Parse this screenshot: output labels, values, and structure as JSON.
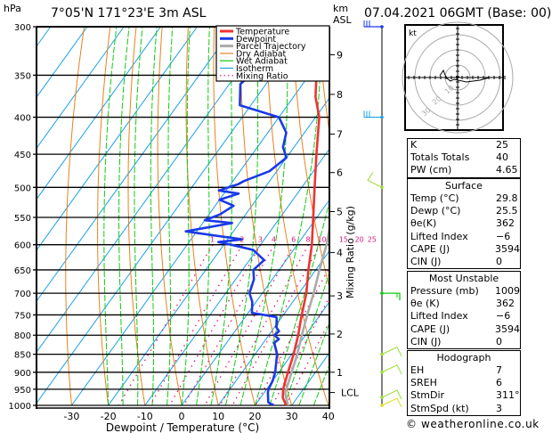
{
  "header": {
    "unit_label": "hPa",
    "location": "7°05'N  171°23'E  3m  ASL",
    "datetime": "07.04.2021  06GMT  (Base: 00)",
    "km_label_1": "km",
    "km_label_2": "ASL"
  },
  "legend": [
    {
      "label": "Temperature",
      "color": "#ee3333",
      "style": "solid-thick"
    },
    {
      "label": "Dewpoint",
      "color": "#1a3ae8",
      "style": "solid-thick"
    },
    {
      "label": "Parcel Trajectory",
      "color": "#aaaaaa",
      "style": "solid-thick"
    },
    {
      "label": "Dry Adiabat",
      "color": "#e8821e",
      "style": "solid"
    },
    {
      "label": "Wet Adiabat",
      "color": "#11cc11",
      "style": "solid"
    },
    {
      "label": "Isotherm",
      "color": "#1aa0e8",
      "style": "solid"
    },
    {
      "label": "Mixing Ratio",
      "color": "#e0157a",
      "style": "dotted"
    }
  ],
  "chart_data": {
    "type": "line",
    "title": "7°05'N 171°23'E 3m ASL",
    "xlabel": "Dewpoint / Temperature (°C)",
    "ylabel": "hPa",
    "right_axis_label": "Mixing Ratio (g/kg)",
    "xlim": [
      -40,
      40
    ],
    "ylim": [
      1000,
      300
    ],
    "x_ticks": [
      -30,
      -20,
      -10,
      0,
      10,
      20,
      30,
      40
    ],
    "pressure_levels": [
      300,
      350,
      400,
      450,
      500,
      550,
      600,
      650,
      700,
      750,
      800,
      850,
      900,
      950,
      1000
    ],
    "km_ticks": [
      {
        "label": "9",
        "p": 328
      },
      {
        "label": "8",
        "p": 372
      },
      {
        "label": "7",
        "p": 422
      },
      {
        "label": "6",
        "p": 477
      },
      {
        "label": "5",
        "p": 540
      },
      {
        "label": "4",
        "p": 615
      },
      {
        "label": "3",
        "p": 706
      },
      {
        "label": "2",
        "p": 797
      },
      {
        "label": "1",
        "p": 900
      },
      {
        "label": "LCL",
        "p": 960
      }
    ],
    "mixing_ratio_labels": [
      "1",
      "2",
      "3",
      "4",
      "6",
      "8",
      "10",
      "15",
      "20",
      "25"
    ],
    "mixing_ratio_values": [
      1,
      2,
      3,
      4,
      6,
      8,
      10,
      15,
      20,
      25
    ],
    "series": [
      {
        "name": "Temperature",
        "color": "#ee3333",
        "points": [
          [
            1009,
            29.8
          ],
          [
            1000,
            28.5
          ],
          [
            975,
            26.0
          ],
          [
            950,
            24.5
          ],
          [
            925,
            23.5
          ],
          [
            900,
            22.5
          ],
          [
            850,
            20.5
          ],
          [
            800,
            18.0
          ],
          [
            750,
            15.0
          ],
          [
            700,
            12.0
          ],
          [
            650,
            8.0
          ],
          [
            600,
            4.0
          ],
          [
            550,
            -1.0
          ],
          [
            500,
            -6.5
          ],
          [
            450,
            -12.5
          ],
          [
            400,
            -19.0
          ],
          [
            375,
            -24.0
          ],
          [
            350,
            -28.0
          ],
          [
            325,
            -32.0
          ],
          [
            300,
            -37.0
          ]
        ]
      },
      {
        "name": "Dewpoint",
        "color": "#1a3ae8",
        "points": [
          [
            1009,
            25.5
          ],
          [
            1000,
            25.0
          ],
          [
            990,
            23.0
          ],
          [
            960,
            21.0
          ],
          [
            950,
            20.5
          ],
          [
            925,
            20.0
          ],
          [
            900,
            19.0
          ],
          [
            850,
            16.0
          ],
          [
            820,
            13.0
          ],
          [
            810,
            13.5
          ],
          [
            800,
            11.5
          ],
          [
            790,
            12.0
          ],
          [
            780,
            10.5
          ],
          [
            760,
            9.0
          ],
          [
            755,
            8.5
          ],
          [
            745,
            1.0
          ],
          [
            720,
            -1.0
          ],
          [
            700,
            -3.5
          ],
          [
            670,
            -5.0
          ],
          [
            650,
            -7.0
          ],
          [
            630,
            -6.0
          ],
          [
            610,
            -11.0
          ],
          [
            600,
            -18.0
          ],
          [
            595,
            -22.0
          ],
          [
            590,
            -16.0
          ],
          [
            575,
            -33.0
          ],
          [
            560,
            -22.0
          ],
          [
            555,
            -30.0
          ],
          [
            545,
            -27.0
          ],
          [
            530,
            -25.0
          ],
          [
            520,
            -30.0
          ],
          [
            510,
            -26.0
          ],
          [
            505,
            -32.0
          ],
          [
            495,
            -28.0
          ],
          [
            490,
            -27.0
          ],
          [
            475,
            -22.0
          ],
          [
            455,
            -20.0
          ],
          [
            440,
            -23.0
          ],
          [
            420,
            -25.0
          ],
          [
            400,
            -30.0
          ],
          [
            385,
            -43.0
          ],
          [
            360,
            -47.0
          ],
          [
            350,
            -46.0
          ],
          [
            335,
            -45.0
          ],
          [
            320,
            -50.0
          ],
          [
            310,
            -52.0
          ],
          [
            303,
            -53.0
          ],
          [
            300,
            -56.0
          ]
        ]
      },
      {
        "name": "Parcel Trajectory",
        "color": "#aaaaaa",
        "points": [
          [
            1009,
            29.8
          ],
          [
            990,
            28.2
          ],
          [
            970,
            26.5
          ],
          [
            960,
            25.7
          ],
          [
            900,
            23.5
          ],
          [
            850,
            21.5
          ],
          [
            800,
            19.0
          ],
          [
            750,
            16.5
          ],
          [
            700,
            14.0
          ],
          [
            650,
            11.0
          ],
          [
            600,
            8.0
          ],
          [
            550,
            4.0
          ],
          [
            500,
            0.0
          ],
          [
            450,
            -5.0
          ],
          [
            400,
            -11.0
          ],
          [
            350,
            -18.5
          ],
          [
            300,
            -27.0
          ]
        ]
      }
    ]
  },
  "winds": {
    "barbs": [
      {
        "p": 300,
        "color": "#1a3ae8"
      },
      {
        "p": 400,
        "color": "#1aa0e8"
      },
      {
        "p": 500,
        "color": "#99dd33"
      },
      {
        "p": 700,
        "color": "#11cc11"
      },
      {
        "p": 850,
        "color": "#99dd33"
      },
      {
        "p": 900,
        "color": "#99dd33"
      },
      {
        "p": 975,
        "color": "#99dd33"
      },
      {
        "p": 1000,
        "color": "#dddd22"
      }
    ]
  },
  "hodograph": {
    "unit_label": "kt",
    "ring_labels": [
      "10",
      "20",
      "30"
    ]
  },
  "indices": {
    "rows": [
      {
        "key": "K",
        "value": "25"
      },
      {
        "key": "Totals Totals",
        "value": "40"
      },
      {
        "key": "PW (cm)",
        "value": "4.65"
      }
    ]
  },
  "surface": {
    "title": "Surface",
    "rows": [
      {
        "key": "Temp (°C)",
        "value": "29.8"
      },
      {
        "key": "Dewp (°C)",
        "value": "25.5"
      },
      {
        "key": "θe(K)",
        "value": "362"
      },
      {
        "key": "Lifted Index",
        "value": "−6"
      },
      {
        "key": "CAPE (J)",
        "value": "3594"
      },
      {
        "key": "CIN (J)",
        "value": "0"
      }
    ]
  },
  "most_unstable": {
    "title": "Most Unstable",
    "rows": [
      {
        "key": "Pressure (mb)",
        "value": "1009"
      },
      {
        "key": "θe (K)",
        "value": "362"
      },
      {
        "key": "Lifted Index",
        "value": "−6"
      },
      {
        "key": "CAPE (J)",
        "value": "3594"
      },
      {
        "key": "CIN (J)",
        "value": "0"
      }
    ]
  },
  "hodograph_table": {
    "title": "Hodograph",
    "rows": [
      {
        "key": "EH",
        "value": "7"
      },
      {
        "key": "SREH",
        "value": "6"
      },
      {
        "key": "StmDir",
        "value": "311°"
      },
      {
        "key": "StmSpd (kt)",
        "value": "3"
      }
    ]
  },
  "footer": {
    "copyright": "© weatheronline.co.uk"
  }
}
